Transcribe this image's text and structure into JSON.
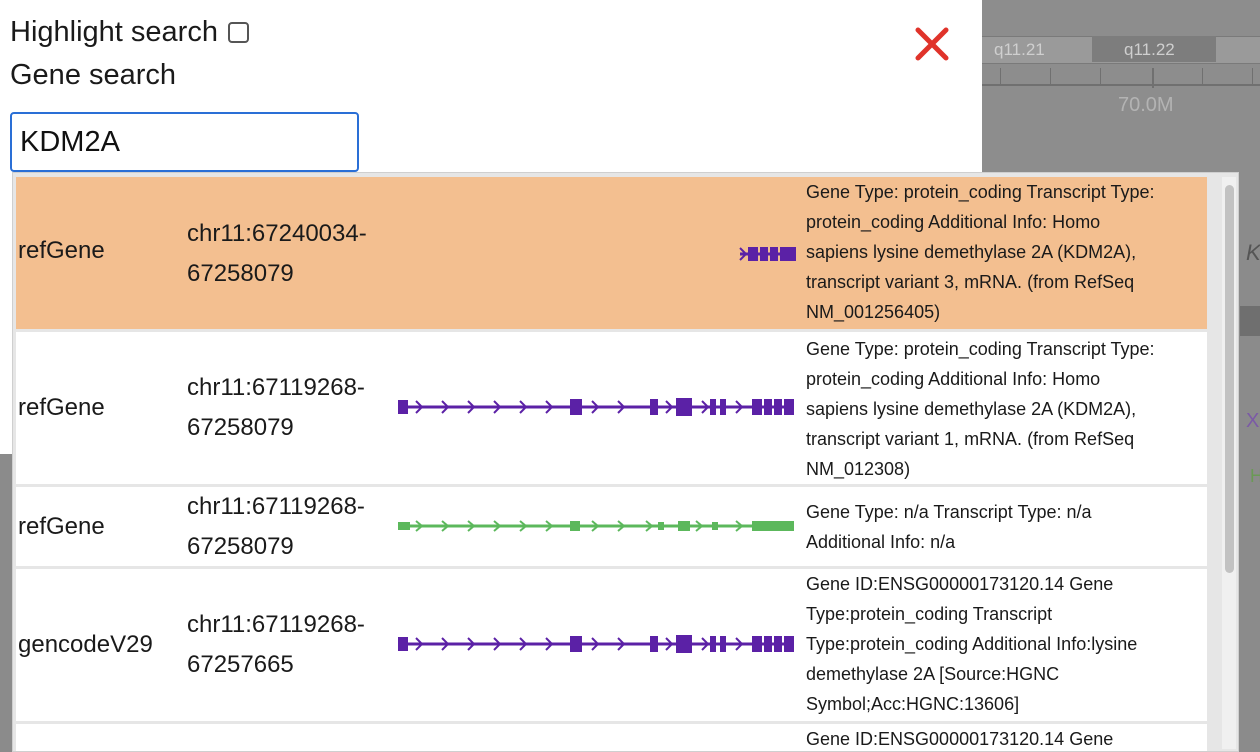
{
  "panel": {
    "highlight_label": "Highlight search",
    "highlight_checked": false,
    "gene_search_label": "Gene search",
    "search_value": "KDM2A",
    "close_icon": "close-icon",
    "close_color": "#e0332a"
  },
  "background": {
    "band_left": "q11.21",
    "band_right": "q11.22",
    "coordinate": "70.0M",
    "fragment_k": "K",
    "fragment_x": "X",
    "fragment_h": "H"
  },
  "colors": {
    "selected_row": "#f3bf90",
    "track_purple": "#5b21a6",
    "track_green": "#5cb85c"
  },
  "results": [
    {
      "source": "refGene",
      "loc_line1": "chr11:67240034-",
      "loc_line2": "67258079",
      "glyph_color": "purple",
      "selected": true,
      "desc": [
        "Gene Type: protein_coding Transcript Type:",
        "protein_coding Additional Info: Homo",
        "sapiens lysine demethylase 2A (KDM2A),",
        "transcript variant 3, mRNA. (from RefSeq",
        "NM_001256405)"
      ]
    },
    {
      "source": "refGene",
      "loc_line1": "chr11:67119268-",
      "loc_line2": "67258079",
      "glyph_color": "purple",
      "selected": false,
      "desc": [
        "Gene Type: protein_coding Transcript Type:",
        "protein_coding Additional Info: Homo",
        "sapiens lysine demethylase 2A (KDM2A),",
        "transcript variant 1, mRNA. (from RefSeq",
        "NM_012308)"
      ]
    },
    {
      "source": "refGene",
      "loc_line1": "chr11:67119268-",
      "loc_line2": "67258079",
      "glyph_color": "green",
      "selected": false,
      "desc": [
        "Gene Type: n/a Transcript Type: n/a",
        "Additional Info: n/a"
      ]
    },
    {
      "source": "gencodeV29",
      "loc_line1": "chr11:67119268-",
      "loc_line2": "67257665",
      "glyph_color": "purple",
      "selected": false,
      "desc": [
        "Gene ID:ENSG00000173120.14 Gene",
        "Type:protein_coding Transcript",
        "Type:protein_coding Additional Info:lysine",
        "demethylase 2A [Source:HGNC",
        "Symbol;Acc:HGNC:13606]"
      ]
    },
    {
      "source": "",
      "loc_line1": "",
      "loc_line2": "",
      "glyph_color": "none",
      "selected": false,
      "desc": [
        "Gene ID:ENSG00000173120.14 Gene"
      ]
    }
  ]
}
